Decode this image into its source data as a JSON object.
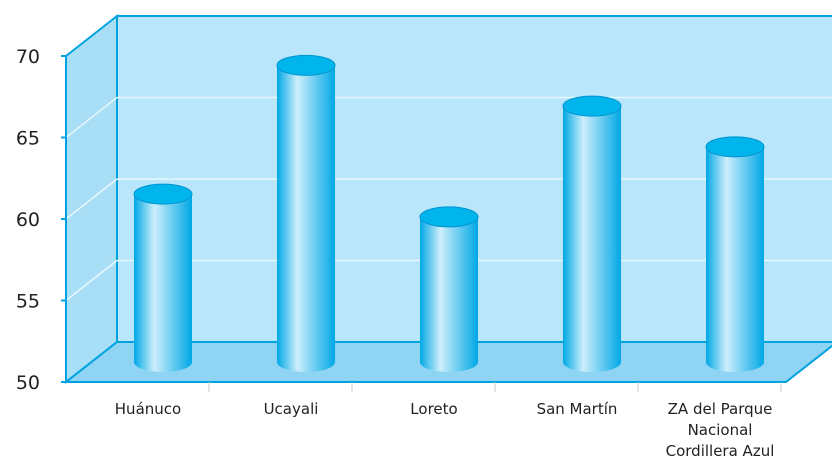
{
  "chart_data": {
    "type": "bar",
    "style": "3d-cylinder",
    "categories": [
      [
        "Huánuco"
      ],
      [
        "Ucayali"
      ],
      [
        "Loreto"
      ],
      [
        "San Martín"
      ],
      [
        "ZA del Parque",
        "Nacional",
        "Cordillera Azul"
      ]
    ],
    "values": [
      60.3,
      68.2,
      58.9,
      65.7,
      63.2
    ],
    "ylim": [
      50,
      70
    ],
    "yticks": [
      50,
      55,
      60,
      65,
      70
    ],
    "grid": true,
    "legend": "none"
  },
  "colors": {
    "axis_line": "#00a3e0",
    "back_wall": "#b9e6fa",
    "floor": "#8fd5f3",
    "side_wall": "#a8def6",
    "gridline": "#e8f7fd",
    "bar_dark": "#00a8e6",
    "bar_light": "#cdeefb",
    "bar_top": "#00b4ec"
  }
}
